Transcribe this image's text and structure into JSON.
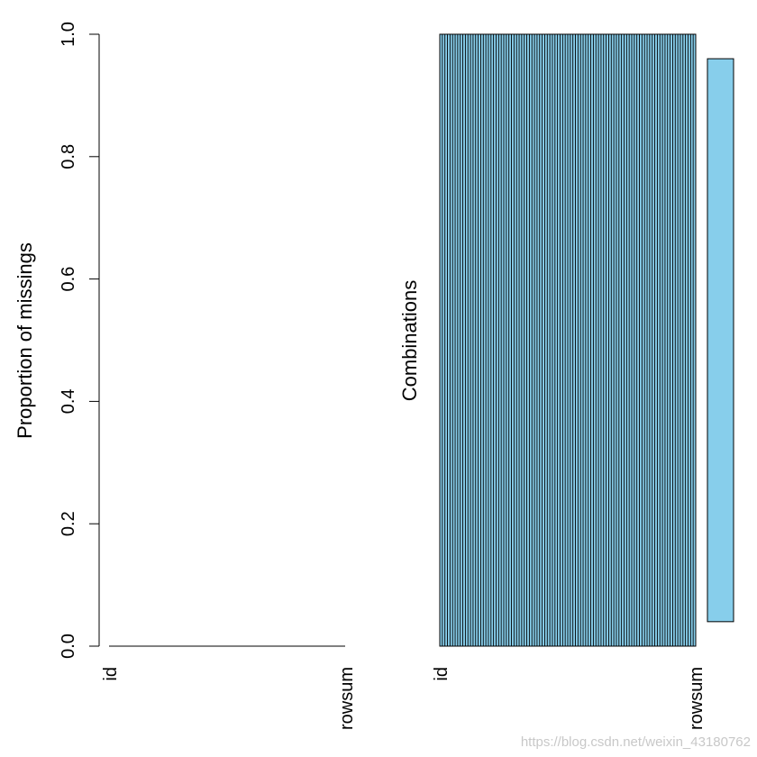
{
  "chart_data": [
    {
      "type": "bar",
      "ylabel": "Proportion of missings",
      "ylim": [
        0,
        1
      ],
      "yticks": [
        "0.0",
        "0.2",
        "0.4",
        "0.6",
        "0.8",
        "1.0"
      ],
      "categories": [
        "id",
        "rowsum"
      ],
      "values": [
        0,
        0
      ],
      "grid": false
    },
    {
      "type": "heatmap",
      "ylabel": "Combinations",
      "categories": [
        "id",
        "rowsum"
      ],
      "combinations": [
        {
          "id": "observed",
          "rowsum": "observed",
          "proportion": 0.92
        }
      ],
      "grid": false
    }
  ],
  "colors": {
    "observed": "#87ceeb",
    "missing": "#ff0000",
    "cell_border": "#000000",
    "axis": "#000000",
    "watermark": "#c8c8c8"
  },
  "watermark": "https://blog.csdn.net/weixin_43180762"
}
